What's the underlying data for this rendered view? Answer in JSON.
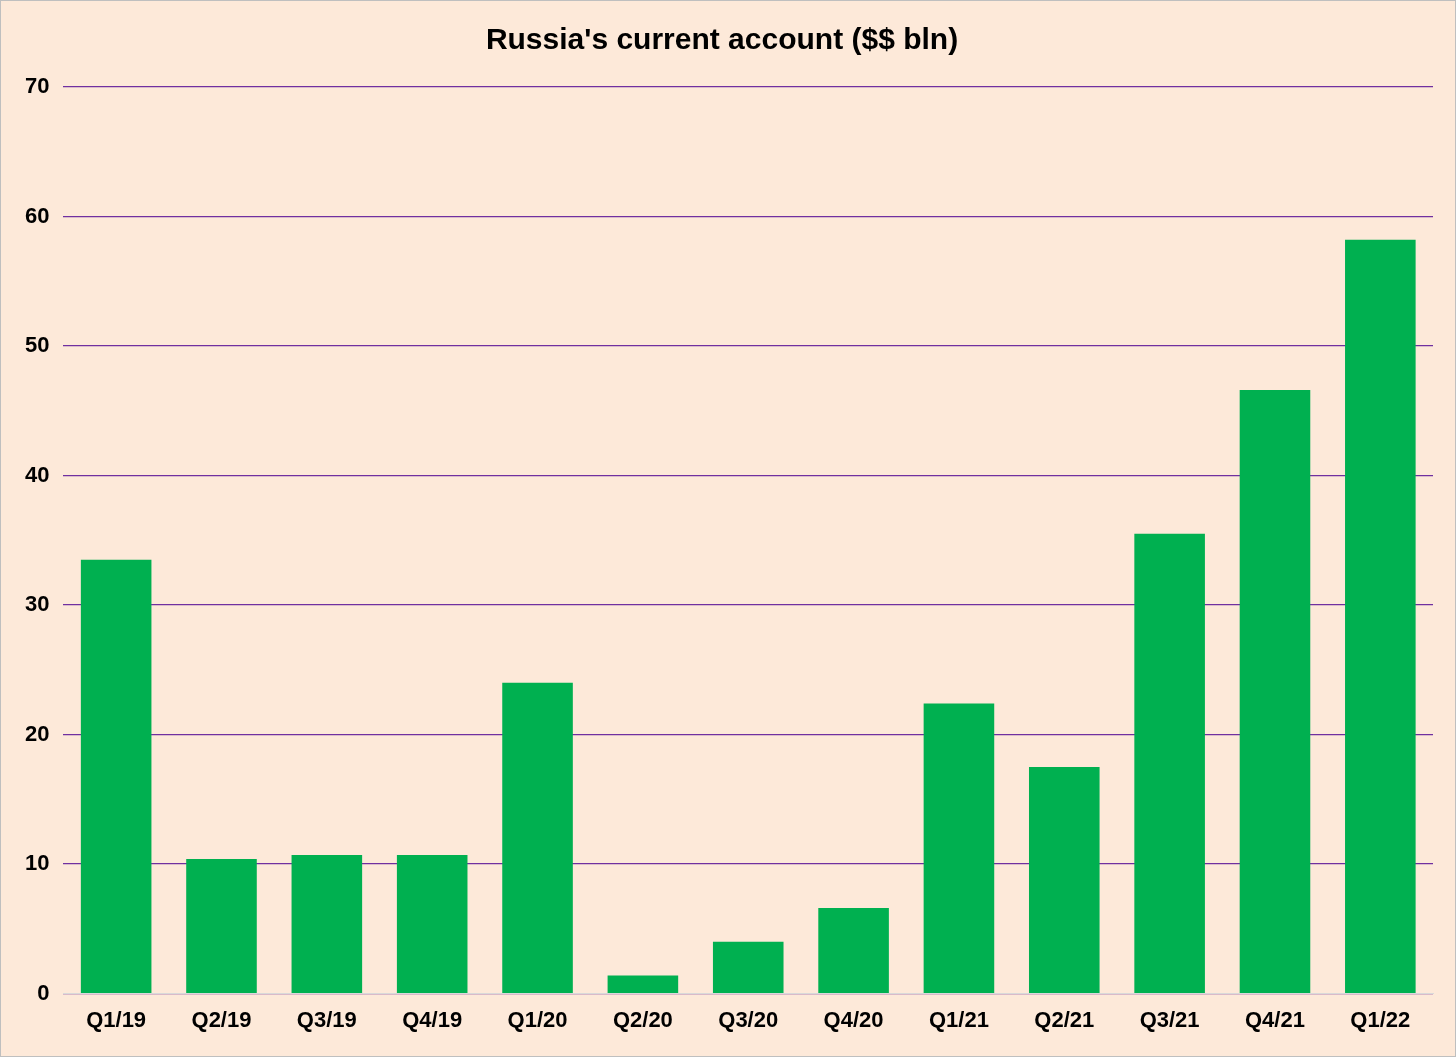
{
  "chart_data": {
    "type": "bar",
    "title": "Russia's current account ($$ bln)",
    "categories": [
      "Q1/19",
      "Q2/19",
      "Q3/19",
      "Q4/19",
      "Q1/20",
      "Q2/20",
      "Q3/20",
      "Q4/20",
      "Q1/21",
      "Q2/21",
      "Q3/21",
      "Q4/21",
      "Q1/22"
    ],
    "values": [
      33.5,
      10.4,
      10.7,
      10.7,
      24.0,
      1.4,
      4.0,
      6.6,
      22.4,
      17.5,
      35.5,
      46.6,
      58.2
    ],
    "color": "#00b050",
    "ylim": [
      0,
      70
    ],
    "yticks": [
      0,
      10,
      20,
      30,
      40,
      50,
      60,
      70
    ],
    "grid": "y",
    "legend": false
  }
}
